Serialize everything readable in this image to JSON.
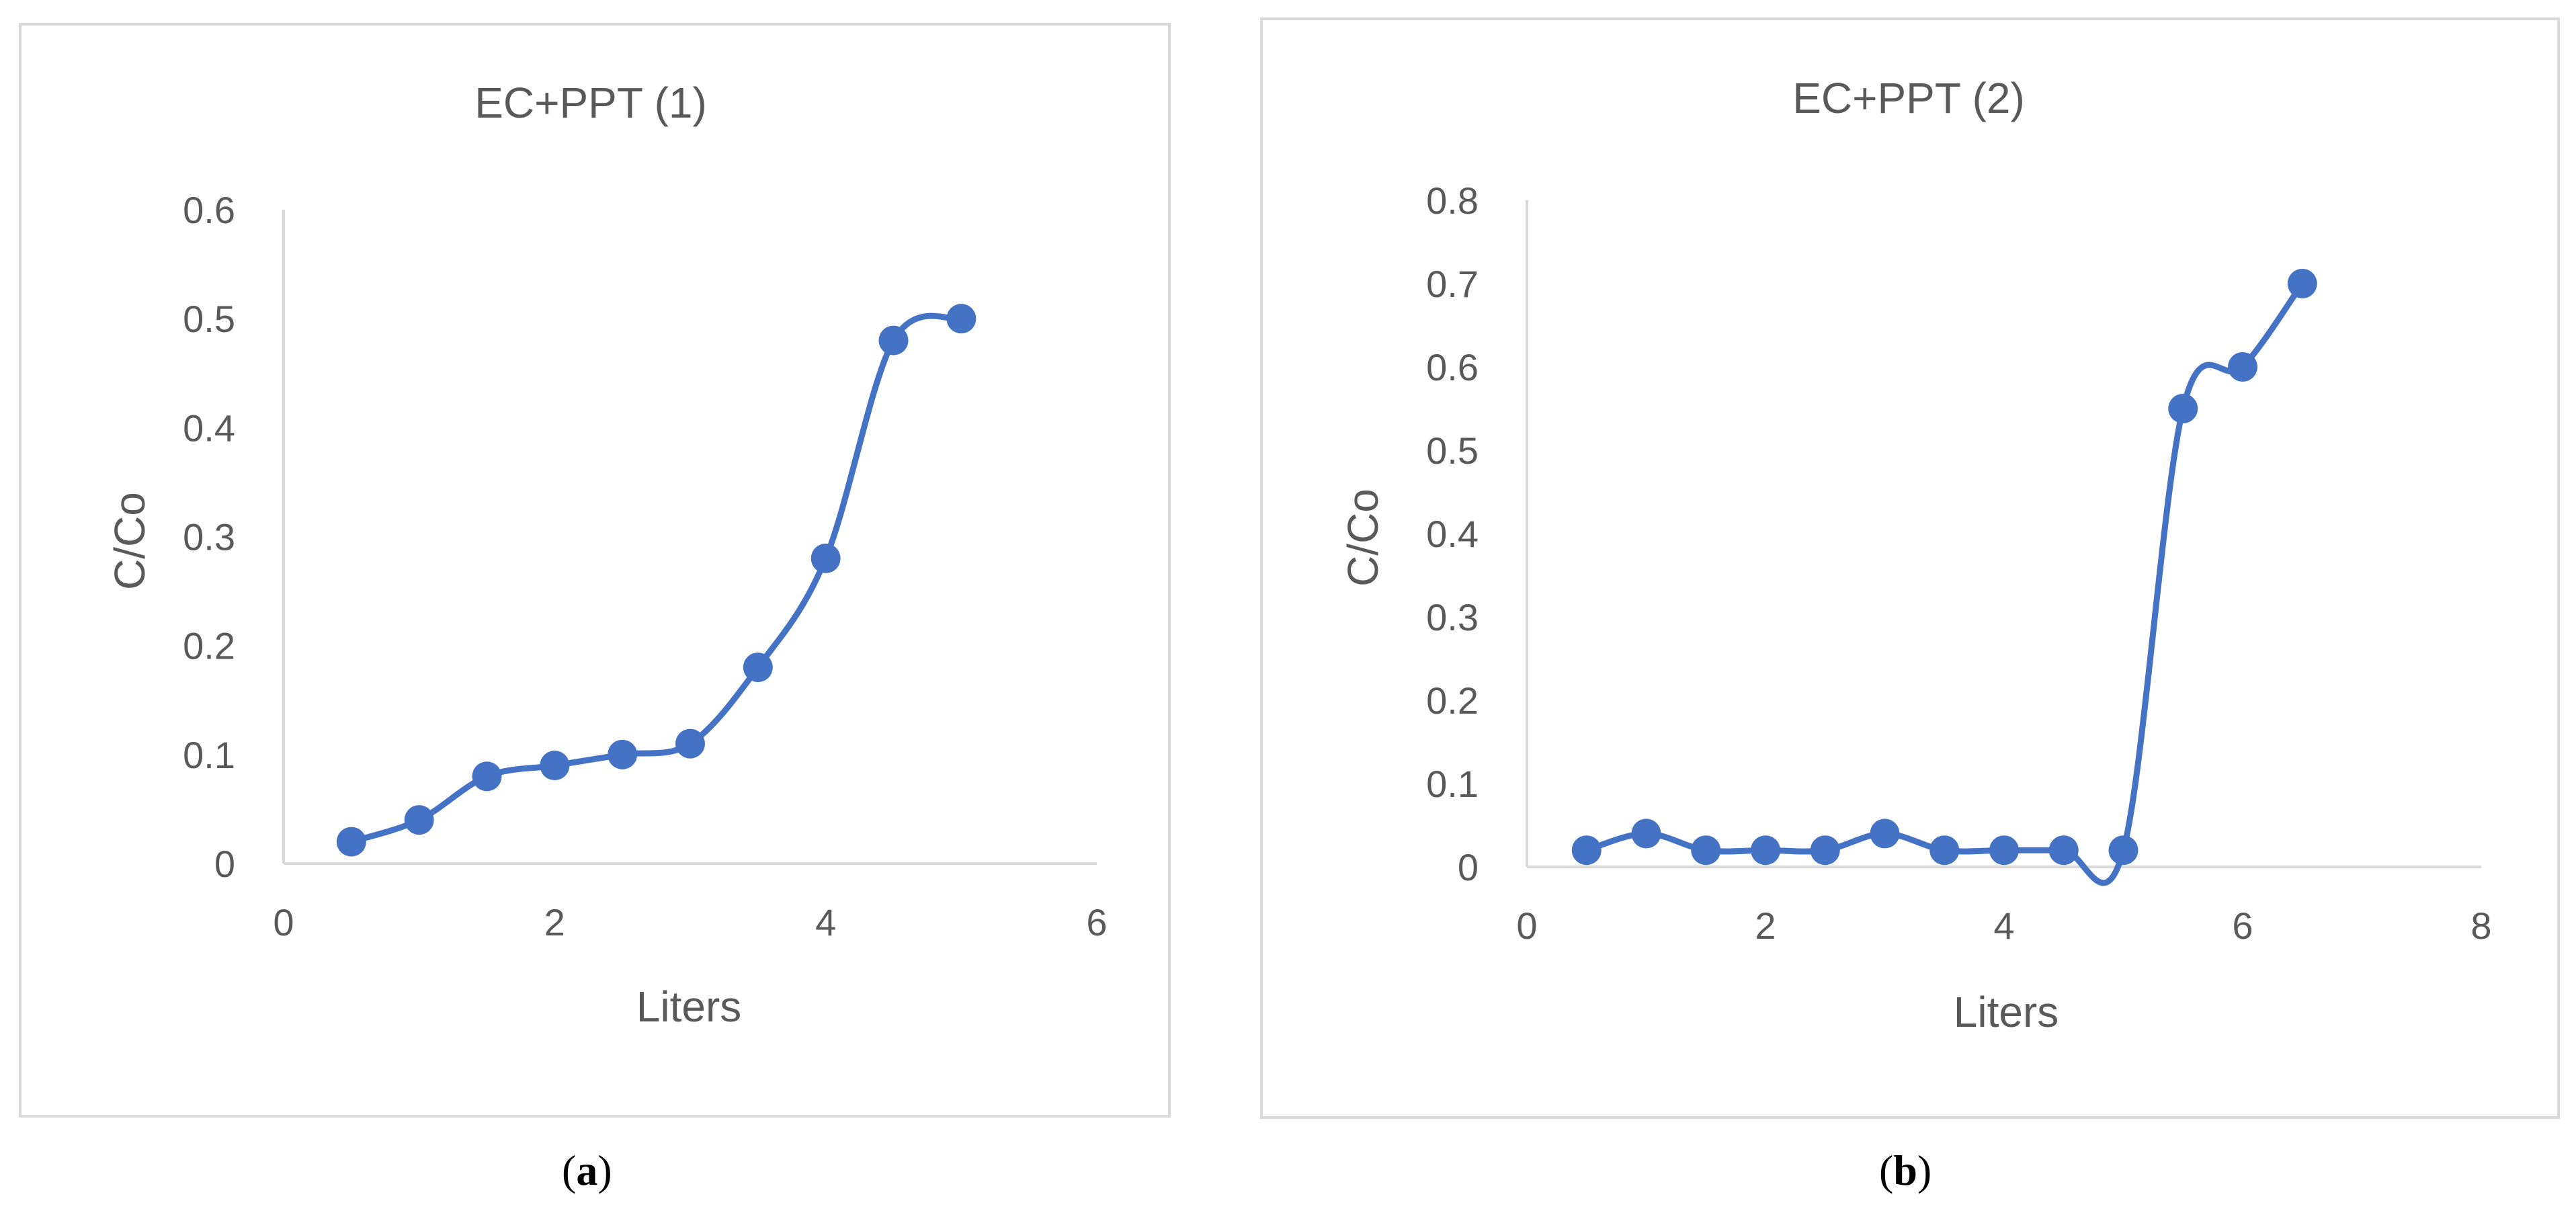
{
  "colors": {
    "series": "#4472c4",
    "frame": "#d9d9d9",
    "text": "#595959"
  },
  "panels": [
    {
      "open": "(",
      "letter": "a",
      "close": ")"
    },
    {
      "open": "(",
      "letter": "b",
      "close": ")"
    }
  ],
  "chart_data": [
    {
      "type": "scatter",
      "title": "EC+PPT (1)",
      "xlabel": "Liters",
      "ylabel": "C/Co",
      "xlim": [
        0,
        6
      ],
      "ylim": [
        0,
        0.6
      ],
      "xticks": [
        0,
        2,
        4,
        6
      ],
      "yticks": [
        0,
        0.1,
        0.2,
        0.3,
        0.4,
        0.5,
        0.6
      ],
      "grid": false,
      "smooth_line": true,
      "series": [
        {
          "x": [
            0.5,
            1,
            1.5,
            2,
            2.5,
            3,
            3.5,
            4,
            4.5,
            5
          ],
          "y": [
            0.02,
            0.04,
            0.08,
            0.09,
            0.1,
            0.11,
            0.18,
            0.28,
            0.48,
            0.5
          ]
        }
      ]
    },
    {
      "type": "scatter",
      "title": "EC+PPT (2)",
      "xlabel": "Liters",
      "ylabel": "C/Co",
      "xlim": [
        0,
        8
      ],
      "ylim": [
        0,
        0.8
      ],
      "xticks": [
        0,
        2,
        4,
        6,
        8
      ],
      "yticks": [
        0,
        0.1,
        0.2,
        0.3,
        0.4,
        0.5,
        0.6,
        0.7,
        0.8
      ],
      "grid": false,
      "smooth_line": true,
      "series": [
        {
          "x": [
            0.5,
            1,
            1.5,
            2,
            2.5,
            3,
            3.5,
            4,
            4.5,
            5,
            5.5,
            6,
            6.5
          ],
          "y": [
            0.02,
            0.04,
            0.02,
            0.02,
            0.02,
            0.04,
            0.02,
            0.02,
            0.02,
            0.02,
            0.55,
            0.6,
            0.7
          ]
        }
      ]
    }
  ]
}
